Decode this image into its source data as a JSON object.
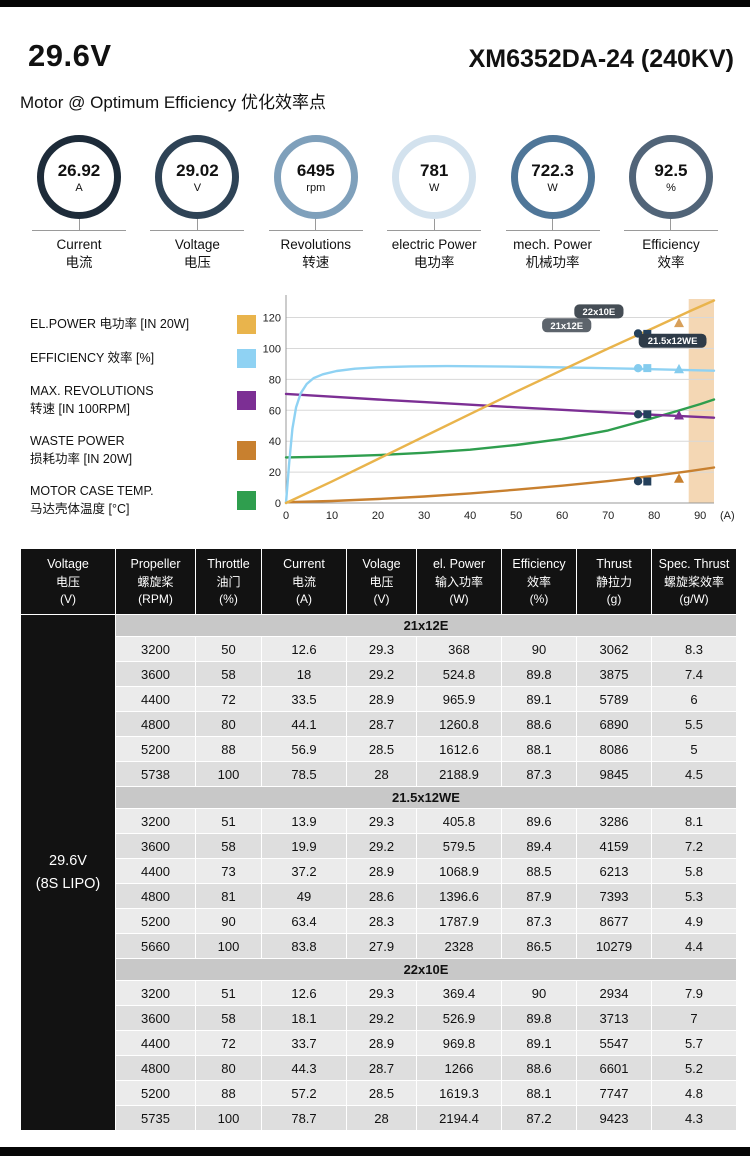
{
  "header": {
    "voltage": "29.6V",
    "model": "XM6352DA-24 (240KV)",
    "subtitle": "Motor @ Optimum Efficiency 优化效率点"
  },
  "gauges": [
    {
      "value": "26.92",
      "unit": "A",
      "label_en": "Current",
      "label_cn": "电流",
      "ring_color": "#1d2b39"
    },
    {
      "value": "29.02",
      "unit": "V",
      "label_en": "Voltage",
      "label_cn": "电压",
      "ring_color": "#2e4356"
    },
    {
      "value": "6495",
      "unit": "rpm",
      "label_en": "Revolutions",
      "label_cn": "转速",
      "ring_color": "#7fa0bb"
    },
    {
      "value": "781",
      "unit": "W",
      "label_en": "electric Power",
      "label_cn": "电功率",
      "ring_color": "#d3e2ee"
    },
    {
      "value": "722.3",
      "unit": "W",
      "label_en": "mech. Power",
      "label_cn": "机械功率",
      "ring_color": "#4f7698"
    },
    {
      "value": "92.5",
      "unit": "%",
      "label_en": "Efficiency",
      "label_cn": "效率",
      "ring_color": "#516478"
    }
  ],
  "legend": [
    {
      "lines": [
        "EL.POWER 电功率 [IN 20W]"
      ],
      "color": "#e9b44c"
    },
    {
      "lines": [
        "EFFICIENCY 效率 [%]"
      ],
      "color": "#8fd2f3"
    },
    {
      "lines": [
        "MAX. REVOLUTIONS",
        "转速 [IN 100RPM]"
      ],
      "color": "#7c2f94"
    },
    {
      "lines": [
        "WASTE POWER",
        "损耗功率 [IN 20W]"
      ],
      "color": "#c8802f"
    },
    {
      "lines": [
        "MOTOR CASE TEMP.",
        "马达壳体温度 [°C]"
      ],
      "color": "#2f9e4e"
    }
  ],
  "chart_data": {
    "type": "line",
    "title": "",
    "xlabel": "(A)",
    "ylabel": "",
    "x_range": [
      0,
      93
    ],
    "y_range": [
      0,
      132
    ],
    "x_ticks": [
      0,
      10,
      20,
      30,
      40,
      50,
      60,
      70,
      80,
      90
    ],
    "y_ticks": [
      0,
      20,
      40,
      60,
      80,
      100,
      120
    ],
    "grid": "horizontal",
    "legend_position": "left",
    "overload_band": {
      "x_start": 87.5,
      "x_end": 93,
      "color": "#f4d7b4"
    },
    "series": [
      {
        "id": "temp",
        "name": "MOTOR CASE TEMP. [°C]",
        "color": "#2f9e4e",
        "points": [
          [
            0,
            29.5
          ],
          [
            10,
            30
          ],
          [
            20,
            31
          ],
          [
            30,
            32.5
          ],
          [
            40,
            34.5
          ],
          [
            50,
            37.5
          ],
          [
            60,
            41.5
          ],
          [
            70,
            47
          ],
          [
            78,
            53.5
          ],
          [
            85,
            59.5
          ],
          [
            90,
            64
          ],
          [
            93,
            67
          ]
        ]
      },
      {
        "id": "waste",
        "name": "WASTE POWER [IN 20W]",
        "color": "#c8802f",
        "points": [
          [
            0,
            0.5
          ],
          [
            10,
            1.3
          ],
          [
            20,
            2.6
          ],
          [
            30,
            4.2
          ],
          [
            40,
            6.2
          ],
          [
            50,
            8.6
          ],
          [
            60,
            11.2
          ],
          [
            70,
            14.2
          ],
          [
            80,
            17.6
          ],
          [
            88,
            20.8
          ],
          [
            93,
            23
          ]
        ]
      },
      {
        "id": "revolutions",
        "name": "MAX. REVOLUTIONS [IN 100RPM]",
        "color": "#7c2f94",
        "points": [
          [
            0,
            70.6
          ],
          [
            10,
            68.8
          ],
          [
            20,
            67
          ],
          [
            30,
            65.3
          ],
          [
            40,
            63.6
          ],
          [
            50,
            61.9
          ],
          [
            60,
            60.3
          ],
          [
            70,
            58.7
          ],
          [
            80,
            57.1
          ],
          [
            88,
            55.9
          ],
          [
            93,
            55.2
          ]
        ]
      },
      {
        "id": "efficiency",
        "name": "EFFICIENCY [%]",
        "color": "#8fd2f3",
        "points": [
          [
            0,
            0
          ],
          [
            0.7,
            26
          ],
          [
            1.4,
            48
          ],
          [
            2.2,
            62
          ],
          [
            3.2,
            71
          ],
          [
            4.5,
            77
          ],
          [
            6,
            80.8
          ],
          [
            8,
            83.3
          ],
          [
            11,
            85.4
          ],
          [
            15,
            86.9
          ],
          [
            20,
            87.8
          ],
          [
            27,
            88.4
          ],
          [
            35,
            88.6
          ],
          [
            45,
            88.4
          ],
          [
            55,
            88
          ],
          [
            65,
            87.5
          ],
          [
            75,
            86.9
          ],
          [
            85,
            86.2
          ],
          [
            93,
            85.6
          ]
        ]
      },
      {
        "id": "el_power",
        "name": "EL.POWER [IN 20W]",
        "color": "#e9b44c",
        "points": [
          [
            0,
            0
          ],
          [
            10,
            14
          ],
          [
            20,
            28.5
          ],
          [
            30,
            43
          ],
          [
            40,
            57.5
          ],
          [
            50,
            72
          ],
          [
            60,
            86
          ],
          [
            70,
            100
          ],
          [
            80,
            113.5
          ],
          [
            88,
            124.5
          ],
          [
            93,
            131
          ]
        ]
      }
    ],
    "max_points": [
      {
        "prop": "22x10E",
        "shape": "circle",
        "current": 78.7,
        "el_power": 109.7,
        "efficiency": 87.2,
        "revolutions": 57.4,
        "waste": 14.1
      },
      {
        "prop": "21x12E",
        "shape": "square",
        "current": 78.5,
        "el_power": 109.4,
        "efficiency": 87.3,
        "revolutions": 57.4,
        "waste": 13.9
      },
      {
        "prop": "21.5x12WE",
        "shape": "triangle",
        "current": 83.8,
        "el_power": 116.4,
        "efficiency": 86.5,
        "revolutions": 56.6,
        "waste": 15.7
      }
    ],
    "marker_styles": {
      "el_power": {
        "circle": "#24405b",
        "square": "#24405b",
        "triangle": "#d8a05a"
      },
      "efficiency": {
        "circle": "#85ccee",
        "square": "#85ccee",
        "triangle": "#85ccee"
      },
      "revolutions": {
        "circle": "#24405b",
        "square": "#24405b",
        "triangle": "#7c2f94"
      },
      "waste": {
        "circle": "#24405b",
        "square": "#24405b",
        "triangle": "#c8802f"
      }
    },
    "annotations": [
      {
        "text": "22x10E",
        "x": 68,
        "y": 124,
        "bg": "#454d55"
      },
      {
        "text": "21x12E",
        "x": 61,
        "y": 115,
        "bg": "#5d646c"
      },
      {
        "text": "21.5x12WE",
        "x": 84,
        "y": 105,
        "bg": "#2e3b48"
      }
    ]
  },
  "table": {
    "headers": [
      {
        "en": "Voltage",
        "cn": "电压",
        "unit": "(V)"
      },
      {
        "en": "Propeller",
        "cn": "螺旋桨",
        "unit": "(RPM)"
      },
      {
        "en": "Throttle",
        "cn": "油门",
        "unit": "(%)"
      },
      {
        "en": "Current",
        "cn": "电流",
        "unit": "(A)"
      },
      {
        "en": "Volage",
        "cn": "电压",
        "unit": "(V)"
      },
      {
        "en": "el. Power",
        "cn": "输入功率",
        "unit": "(W)"
      },
      {
        "en": "Efficiency",
        "cn": "效率",
        "unit": "(%)"
      },
      {
        "en": "Thrust",
        "cn": "静拉力",
        "unit": "(g)"
      },
      {
        "en": "Spec. Thrust",
        "cn": "螺旋桨效率",
        "unit": "(g/W)"
      }
    ],
    "group": {
      "line1": "29.6V",
      "line2": "(8S LIPO)"
    },
    "sections": [
      {
        "label": "21x12E",
        "rows": [
          [
            "3200",
            "50",
            "12.6",
            "29.3",
            "368",
            "90",
            "3062",
            "8.3"
          ],
          [
            "3600",
            "58",
            "18",
            "29.2",
            "524.8",
            "89.8",
            "3875",
            "7.4"
          ],
          [
            "4400",
            "72",
            "33.5",
            "28.9",
            "965.9",
            "89.1",
            "5789",
            "6"
          ],
          [
            "4800",
            "80",
            "44.1",
            "28.7",
            "1260.8",
            "88.6",
            "6890",
            "5.5"
          ],
          [
            "5200",
            "88",
            "56.9",
            "28.5",
            "1612.6",
            "88.1",
            "8086",
            "5"
          ],
          [
            "5738",
            "100",
            "78.5",
            "28",
            "2188.9",
            "87.3",
            "9845",
            "4.5"
          ]
        ]
      },
      {
        "label": "21.5x12WE",
        "rows": [
          [
            "3200",
            "51",
            "13.9",
            "29.3",
            "405.8",
            "89.6",
            "3286",
            "8.1"
          ],
          [
            "3600",
            "58",
            "19.9",
            "29.2",
            "579.5",
            "89.4",
            "4159",
            "7.2"
          ],
          [
            "4400",
            "73",
            "37.2",
            "28.9",
            "1068.9",
            "88.5",
            "6213",
            "5.8"
          ],
          [
            "4800",
            "81",
            "49",
            "28.6",
            "1396.6",
            "87.9",
            "7393",
            "5.3"
          ],
          [
            "5200",
            "90",
            "63.4",
            "28.3",
            "1787.9",
            "87.3",
            "8677",
            "4.9"
          ],
          [
            "5660",
            "100",
            "83.8",
            "27.9",
            "2328",
            "86.5",
            "10279",
            "4.4"
          ]
        ]
      },
      {
        "label": "22x10E",
        "rows": [
          [
            "3200",
            "51",
            "12.6",
            "29.3",
            "369.4",
            "90",
            "2934",
            "7.9"
          ],
          [
            "3600",
            "58",
            "18.1",
            "29.2",
            "526.9",
            "89.8",
            "3713",
            "7"
          ],
          [
            "4400",
            "72",
            "33.7",
            "28.9",
            "969.8",
            "89.1",
            "5547",
            "5.7"
          ],
          [
            "4800",
            "80",
            "44.3",
            "28.7",
            "1266",
            "88.6",
            "6601",
            "5.2"
          ],
          [
            "5200",
            "88",
            "57.2",
            "28.5",
            "1619.3",
            "88.1",
            "7747",
            "4.8"
          ],
          [
            "5735",
            "100",
            "78.7",
            "28",
            "2194.4",
            "87.2",
            "9423",
            "4.3"
          ]
        ]
      }
    ]
  }
}
